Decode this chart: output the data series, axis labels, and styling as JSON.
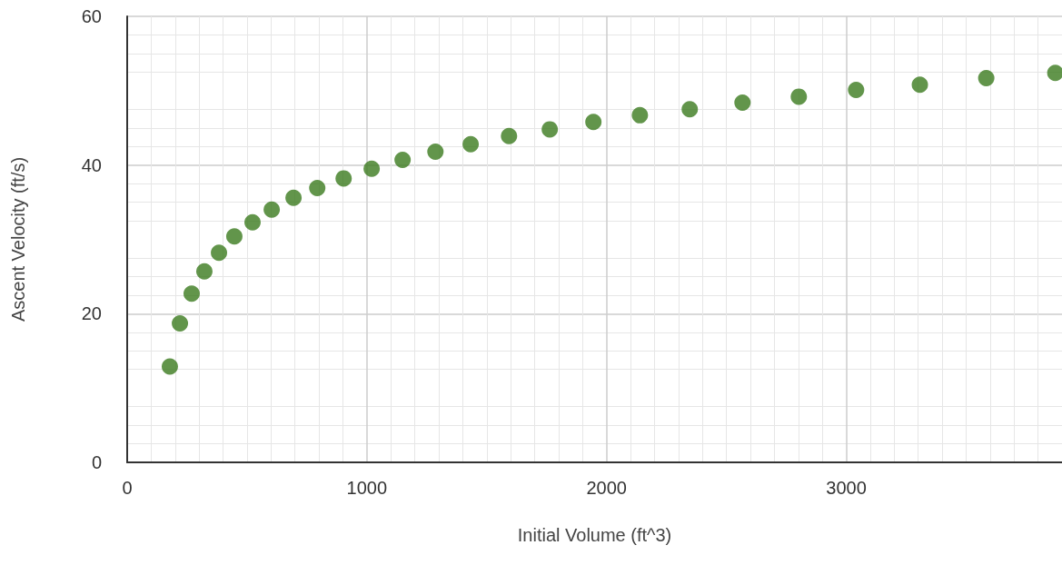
{
  "chart_data": {
    "type": "scatter",
    "xlabel": "Initial Volume (ft^3)",
    "ylabel": "Ascent Velocity (ft/s)",
    "x": [
      178,
      220,
      269,
      322,
      383,
      447,
      523,
      603,
      694,
      793,
      903,
      1020,
      1149,
      1286,
      1433,
      1593,
      1763,
      1945,
      2139,
      2347,
      2567,
      2802,
      3041,
      3307,
      3584,
      3872
    ],
    "series": [
      {
        "color": "#3b7a1e",
        "values": [
          12.9,
          18.7,
          22.7,
          25.7,
          28.2,
          30.4,
          32.3,
          34.0,
          35.6,
          36.9,
          38.2,
          39.5,
          40.7,
          41.8,
          42.8,
          43.9,
          44.8,
          45.8,
          46.7,
          47.5,
          48.4,
          49.2,
          50.1,
          50.8,
          51.7,
          52.4
        ]
      }
    ],
    "xlim": [
      0,
      3900
    ],
    "xticks": [
      0,
      1000,
      2000,
      3000
    ],
    "ylim": [
      0,
      60
    ],
    "yticks": [
      0,
      20,
      40,
      60
    ],
    "grid": true,
    "marker": "circle"
  }
}
